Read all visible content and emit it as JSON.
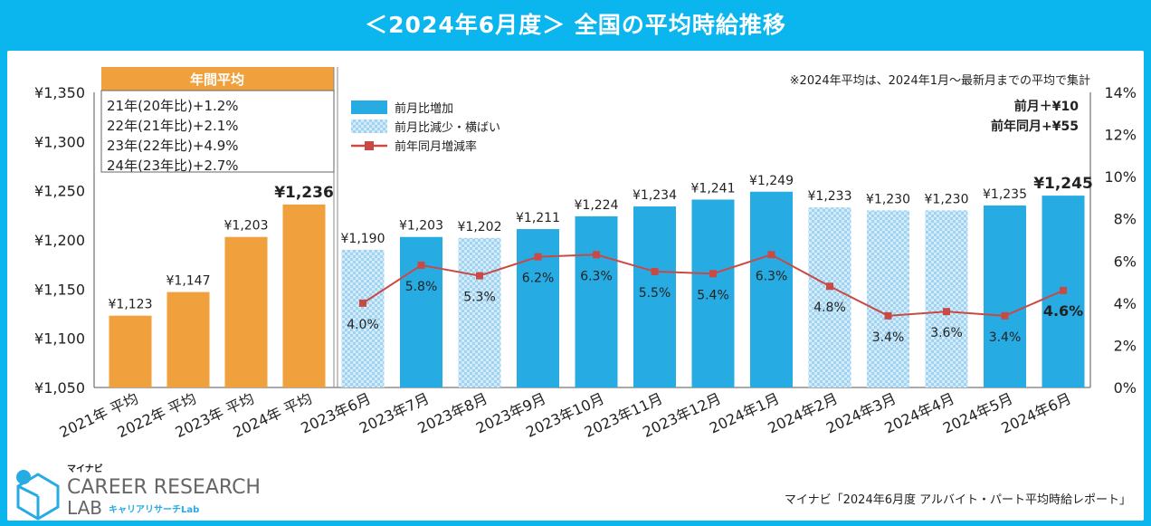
{
  "title": "＜2024年6月度＞ 全国の平均時給推移",
  "note": "※2024年平均は、2024年1月～最新月までの平均で集計",
  "annual_header": "年間平均",
  "annual_growth": [
    "21年(20年比)+1.2%",
    "22年(21年比)+2.1%",
    "23年(22年比)+4.9%",
    "24年(23年比)+2.7%"
  ],
  "legend": {
    "increase": "前月比増加",
    "decrease_flat": "前月比減少・横ばい",
    "yoy": "前年同月増減率"
  },
  "diff": {
    "prev_month": "前月＋¥10",
    "prev_year": "前年同月+¥55"
  },
  "source": "マイナビ「2024年6月度 アルバイト・パート平均時給レポート」",
  "logo": {
    "brand": "マイナビ",
    "line1": "CAREER RESEARCH",
    "line2": "LAB",
    "sub": "キャリアリサーチLab"
  },
  "colors": {
    "annual": "#f0a03c",
    "increase": "#27abe3",
    "decrease": "#b5def5",
    "line": "#c94a44",
    "header": "#0bb6ee"
  },
  "chart_data": {
    "type": "bar+line",
    "y_left": {
      "min": 1050,
      "max": 1350,
      "step": 50,
      "tick_labels": [
        "¥1,050",
        "¥1,100",
        "¥1,150",
        "¥1,200",
        "¥1,250",
        "¥1,300",
        "¥1,350"
      ]
    },
    "y_right": {
      "min": 0,
      "max": 14,
      "step": 2,
      "tick_labels": [
        "0%",
        "2%",
        "4%",
        "6%",
        "8%",
        "10%",
        "12%",
        "14%"
      ]
    },
    "annual": [
      {
        "label": "2021年 平均",
        "value": 1123,
        "value_label": "¥1,123"
      },
      {
        "label": "2022年 平均",
        "value": 1147,
        "value_label": "¥1,147"
      },
      {
        "label": "2023年 平均",
        "value": 1203,
        "value_label": "¥1,203"
      },
      {
        "label": "2024年 平均",
        "value": 1236,
        "value_label": "¥1,236"
      }
    ],
    "monthly": [
      {
        "label": "2023年6月",
        "value": 1190,
        "value_label": "¥1,190",
        "kind": "decrease",
        "yoy": 4.0,
        "yoy_label": "4.0%"
      },
      {
        "label": "2023年7月",
        "value": 1203,
        "value_label": "¥1,203",
        "kind": "increase",
        "yoy": 5.8,
        "yoy_label": "5.8%"
      },
      {
        "label": "2023年8月",
        "value": 1202,
        "value_label": "¥1,202",
        "kind": "decrease",
        "yoy": 5.3,
        "yoy_label": "5.3%"
      },
      {
        "label": "2023年9月",
        "value": 1211,
        "value_label": "¥1,211",
        "kind": "increase",
        "yoy": 6.2,
        "yoy_label": "6.2%"
      },
      {
        "label": "2023年10月",
        "value": 1224,
        "value_label": "¥1,224",
        "kind": "increase",
        "yoy": 6.3,
        "yoy_label": "6.3%"
      },
      {
        "label": "2023年11月",
        "value": 1234,
        "value_label": "¥1,234",
        "kind": "increase",
        "yoy": 5.5,
        "yoy_label": "5.5%"
      },
      {
        "label": "2023年12月",
        "value": 1241,
        "value_label": "¥1,241",
        "kind": "increase",
        "yoy": 5.4,
        "yoy_label": "5.4%"
      },
      {
        "label": "2024年1月",
        "value": 1249,
        "value_label": "¥1,249",
        "kind": "increase",
        "yoy": 6.3,
        "yoy_label": "6.3%"
      },
      {
        "label": "2024年2月",
        "value": 1233,
        "value_label": "¥1,233",
        "kind": "decrease",
        "yoy": 4.8,
        "yoy_label": "4.8%"
      },
      {
        "label": "2024年3月",
        "value": 1230,
        "value_label": "¥1,230",
        "kind": "decrease",
        "yoy": 3.4,
        "yoy_label": "3.4%"
      },
      {
        "label": "2024年4月",
        "value": 1230,
        "value_label": "¥1,230",
        "kind": "decrease",
        "yoy": 3.6,
        "yoy_label": "3.6%"
      },
      {
        "label": "2024年5月",
        "value": 1235,
        "value_label": "¥1,235",
        "kind": "increase",
        "yoy": 3.4,
        "yoy_label": "3.4%"
      },
      {
        "label": "2024年6月",
        "value": 1245,
        "value_label": "¥1,245",
        "kind": "increase",
        "yoy": 4.6,
        "yoy_label": "4.6%"
      }
    ]
  }
}
